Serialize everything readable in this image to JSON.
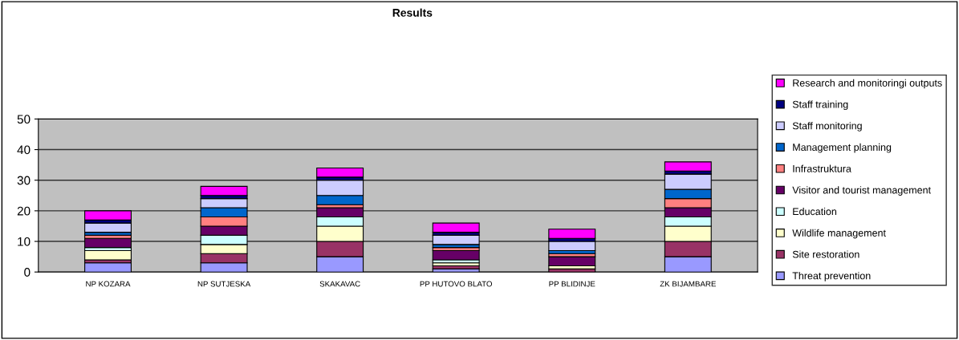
{
  "chart_data": {
    "type": "bar",
    "title": "Results",
    "stacked": true,
    "categories": [
      "NP KOZARA",
      "NP SUTJESKA",
      "SKAKAVAC",
      "PP HUTOVO BLATO",
      "PP BLIDINJE",
      "ZK BIJAMBARE"
    ],
    "series": [
      {
        "name": "Threat prevention",
        "color": "#9999ff",
        "values": [
          3,
          3,
          5,
          1,
          0,
          5
        ]
      },
      {
        "name": "Site restoration",
        "color": "#993366",
        "values": [
          1,
          3,
          5,
          1,
          1,
          5
        ]
      },
      {
        "name": "Wildlife management",
        "color": "#ffffcc",
        "values": [
          3,
          3,
          5,
          1,
          1,
          5
        ]
      },
      {
        "name": "Education",
        "color": "#ccffff",
        "values": [
          1,
          3,
          3,
          1,
          0,
          3
        ]
      },
      {
        "name": "Visitor and tourist management",
        "color": "#660066",
        "values": [
          3,
          3,
          3,
          3,
          3,
          3
        ]
      },
      {
        "name": "Infrastruktura",
        "color": "#ff8080",
        "values": [
          1,
          3,
          1,
          1,
          1,
          3
        ]
      },
      {
        "name": "Management planning",
        "color": "#0066cc",
        "values": [
          1,
          3,
          3,
          1,
          1,
          3
        ]
      },
      {
        "name": "Staff monitoring",
        "color": "#ccccff",
        "values": [
          3,
          3,
          5,
          3,
          3,
          5
        ]
      },
      {
        "name": "Staff training",
        "color": "#000080",
        "values": [
          1,
          1,
          1,
          1,
          1,
          1
        ]
      },
      {
        "name": "Research and monitoringi outputs",
        "color": "#ff00ff",
        "values": [
          3,
          3,
          3,
          3,
          3,
          3
        ]
      }
    ],
    "ylim": [
      0,
      50
    ],
    "yticks": [
      0,
      10,
      20,
      30,
      40,
      50
    ],
    "grid": "y",
    "legend": "right"
  }
}
